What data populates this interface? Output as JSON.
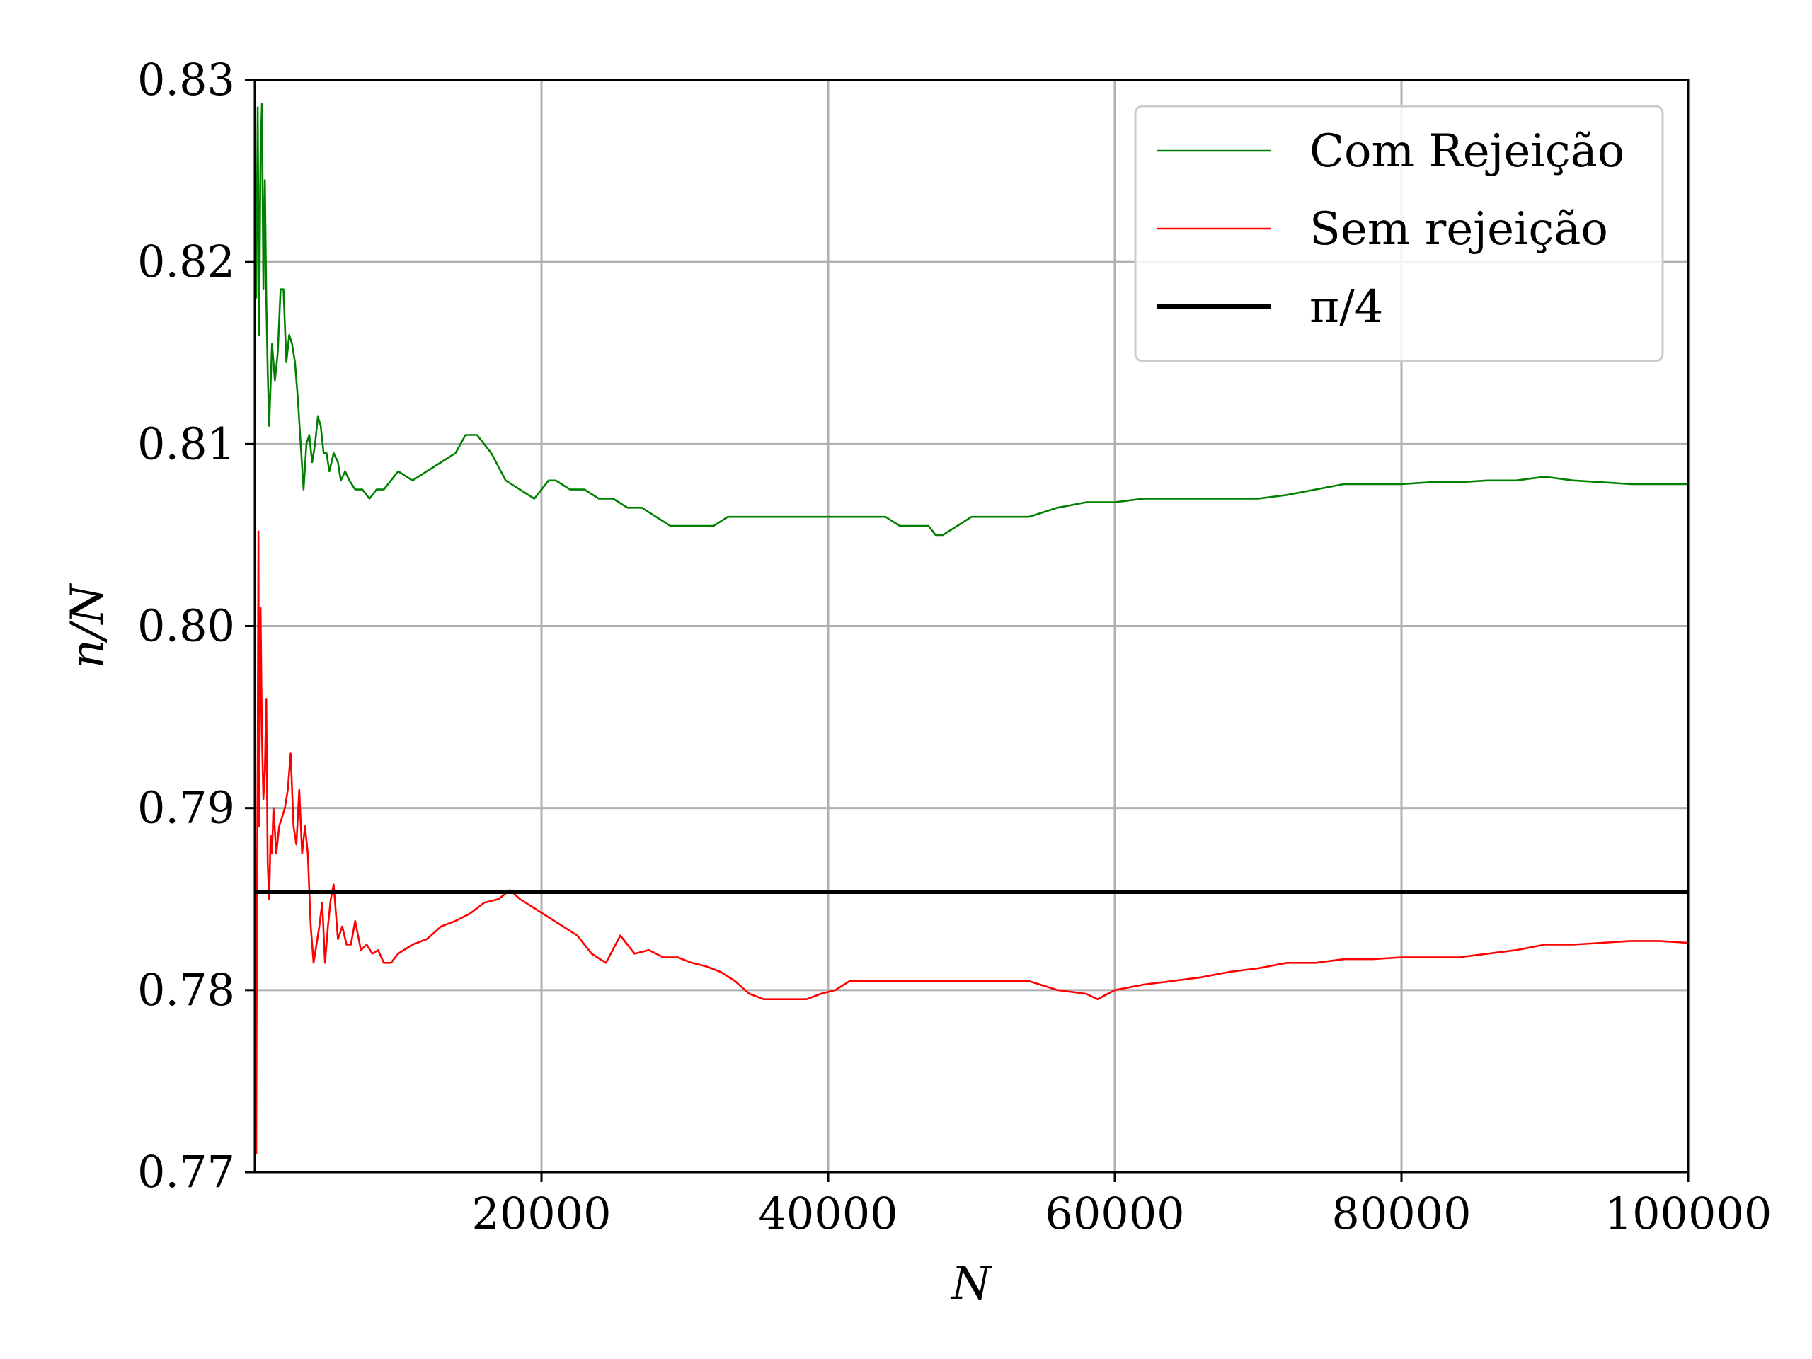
{
  "chart_data": {
    "type": "line",
    "title": "",
    "xlabel": "N",
    "ylabel": "n/N",
    "xlim": [
      0,
      100000
    ],
    "ylim": [
      0.77,
      0.83
    ],
    "x_ticks": [
      {
        "value": 20000,
        "label": "20000"
      },
      {
        "value": 40000,
        "label": "40000"
      },
      {
        "value": 60000,
        "label": "60000"
      },
      {
        "value": 80000,
        "label": "80000"
      },
      {
        "value": 100000,
        "label": "100000"
      }
    ],
    "y_ticks": [
      {
        "value": 0.77,
        "label": "0.77"
      },
      {
        "value": 0.78,
        "label": "0.78"
      },
      {
        "value": 0.79,
        "label": "0.79"
      },
      {
        "value": 0.8,
        "label": "0.80"
      },
      {
        "value": 0.81,
        "label": "0.81"
      },
      {
        "value": 0.82,
        "label": "0.82"
      },
      {
        "value": 0.83,
        "label": "0.83"
      }
    ],
    "grid": true,
    "legend_position": "top-right",
    "series": [
      {
        "name": "Com Rejeição",
        "color": "#008000",
        "style": "thin",
        "x": [
          100,
          200,
          300,
          400,
          500,
          600,
          700,
          800,
          900,
          1000,
          1200,
          1400,
          1600,
          1800,
          2000,
          2200,
          2400,
          2600,
          2800,
          3000,
          3200,
          3400,
          3600,
          3800,
          4000,
          4200,
          4400,
          4600,
          4800,
          5000,
          5200,
          5500,
          5800,
          6000,
          6300,
          6600,
          7000,
          7500,
          8000,
          8500,
          9000,
          9500,
          10000,
          11000,
          12000,
          13000,
          14000,
          14700,
          15500,
          16500,
          17500,
          18500,
          19500,
          20000,
          20500,
          21000,
          22000,
          23000,
          24000,
          25000,
          26000,
          27000,
          28000,
          29000,
          30000,
          31000,
          32000,
          33000,
          34000,
          35000,
          36000,
          37000,
          38000,
          40000,
          42000,
          44000,
          45000,
          46000,
          47000,
          47500,
          48000,
          49000,
          50000,
          52000,
          54000,
          56000,
          58000,
          60000,
          62000,
          64000,
          66000,
          68000,
          70000,
          72000,
          74000,
          76000,
          78000,
          80000,
          82000,
          84000,
          86000,
          88000,
          90000,
          92000,
          94000,
          96000,
          98000,
          100000
        ],
        "y": [
          0.818,
          0.8285,
          0.816,
          0.826,
          0.8287,
          0.8185,
          0.8245,
          0.818,
          0.814,
          0.811,
          0.8155,
          0.8135,
          0.815,
          0.8185,
          0.8185,
          0.8145,
          0.816,
          0.8155,
          0.8145,
          0.8125,
          0.81,
          0.8075,
          0.81,
          0.8105,
          0.809,
          0.81,
          0.8115,
          0.811,
          0.8095,
          0.8095,
          0.8085,
          0.8095,
          0.809,
          0.808,
          0.8085,
          0.808,
          0.8075,
          0.8075,
          0.807,
          0.8075,
          0.8075,
          0.808,
          0.8085,
          0.808,
          0.8085,
          0.809,
          0.8095,
          0.8105,
          0.8105,
          0.8095,
          0.808,
          0.8075,
          0.807,
          0.8075,
          0.808,
          0.808,
          0.8075,
          0.8075,
          0.807,
          0.807,
          0.8065,
          0.8065,
          0.806,
          0.8055,
          0.8055,
          0.8055,
          0.8055,
          0.806,
          0.806,
          0.806,
          0.806,
          0.806,
          0.806,
          0.806,
          0.806,
          0.806,
          0.8055,
          0.8055,
          0.8055,
          0.805,
          0.805,
          0.8055,
          0.806,
          0.806,
          0.806,
          0.8065,
          0.8068,
          0.8068,
          0.807,
          0.807,
          0.807,
          0.807,
          0.807,
          0.8072,
          0.8075,
          0.8078,
          0.8078,
          0.8078,
          0.8079,
          0.8079,
          0.808,
          0.808,
          0.8082,
          0.808,
          0.8079,
          0.8078,
          0.8078,
          0.8078
        ]
      },
      {
        "name": "Sem rejeição",
        "color": "#ff0000",
        "style": "thin",
        "x": [
          100,
          150,
          200,
          250,
          300,
          400,
          500,
          600,
          700,
          800,
          900,
          1000,
          1100,
          1200,
          1300,
          1500,
          1700,
          1900,
          2100,
          2300,
          2500,
          2700,
          2900,
          3100,
          3300,
          3500,
          3700,
          3900,
          4100,
          4300,
          4500,
          4700,
          4900,
          5100,
          5300,
          5500,
          5800,
          6100,
          6400,
          6700,
          7000,
          7400,
          7800,
          8200,
          8600,
          9000,
          9500,
          10000,
          11000,
          12000,
          13000,
          14000,
          15000,
          16000,
          17000,
          17800,
          18500,
          19500,
          20500,
          21500,
          22500,
          23500,
          24500,
          25500,
          26500,
          27500,
          28500,
          29500,
          30500,
          31500,
          32500,
          33500,
          34500,
          35500,
          36500,
          37500,
          38500,
          39500,
          40500,
          41500,
          42500,
          43500,
          44500,
          46000,
          48000,
          50000,
          52000,
          54000,
          56000,
          58000,
          58800,
          60000,
          62000,
          64000,
          66000,
          68000,
          70000,
          72000,
          74000,
          76000,
          78000,
          80000,
          82000,
          84000,
          86000,
          88000,
          90000,
          92000,
          94000,
          96000,
          98000,
          100000
        ],
        "y": [
          0.771,
          0.785,
          0.793,
          0.8052,
          0.789,
          0.801,
          0.794,
          0.7905,
          0.792,
          0.796,
          0.787,
          0.785,
          0.7885,
          0.7875,
          0.79,
          0.7875,
          0.789,
          0.7895,
          0.79,
          0.791,
          0.793,
          0.789,
          0.788,
          0.791,
          0.7875,
          0.789,
          0.7875,
          0.7835,
          0.7815,
          0.7825,
          0.7835,
          0.7848,
          0.7815,
          0.7835,
          0.785,
          0.7858,
          0.7828,
          0.7835,
          0.7825,
          0.7825,
          0.7838,
          0.7822,
          0.7825,
          0.782,
          0.7822,
          0.7815,
          0.7815,
          0.782,
          0.7825,
          0.7828,
          0.7835,
          0.7838,
          0.7842,
          0.7848,
          0.785,
          0.7855,
          0.785,
          0.7845,
          0.784,
          0.7835,
          0.783,
          0.782,
          0.7815,
          0.783,
          0.782,
          0.7822,
          0.7818,
          0.7818,
          0.7815,
          0.7813,
          0.781,
          0.7805,
          0.7798,
          0.7795,
          0.7795,
          0.7795,
          0.7795,
          0.7798,
          0.78,
          0.7805,
          0.7805,
          0.7805,
          0.7805,
          0.7805,
          0.7805,
          0.7805,
          0.7805,
          0.7805,
          0.78,
          0.7798,
          0.7795,
          0.78,
          0.7803,
          0.7805,
          0.7807,
          0.781,
          0.7812,
          0.7815,
          0.7815,
          0.7817,
          0.7817,
          0.7818,
          0.7818,
          0.7818,
          0.782,
          0.7822,
          0.7825,
          0.7825,
          0.7826,
          0.7827,
          0.7827,
          0.7826
        ]
      },
      {
        "name": "π/4",
        "color": "#000000",
        "style": "thick",
        "x": [
          0,
          100000
        ],
        "y": [
          0.785398,
          0.785398
        ]
      }
    ]
  }
}
